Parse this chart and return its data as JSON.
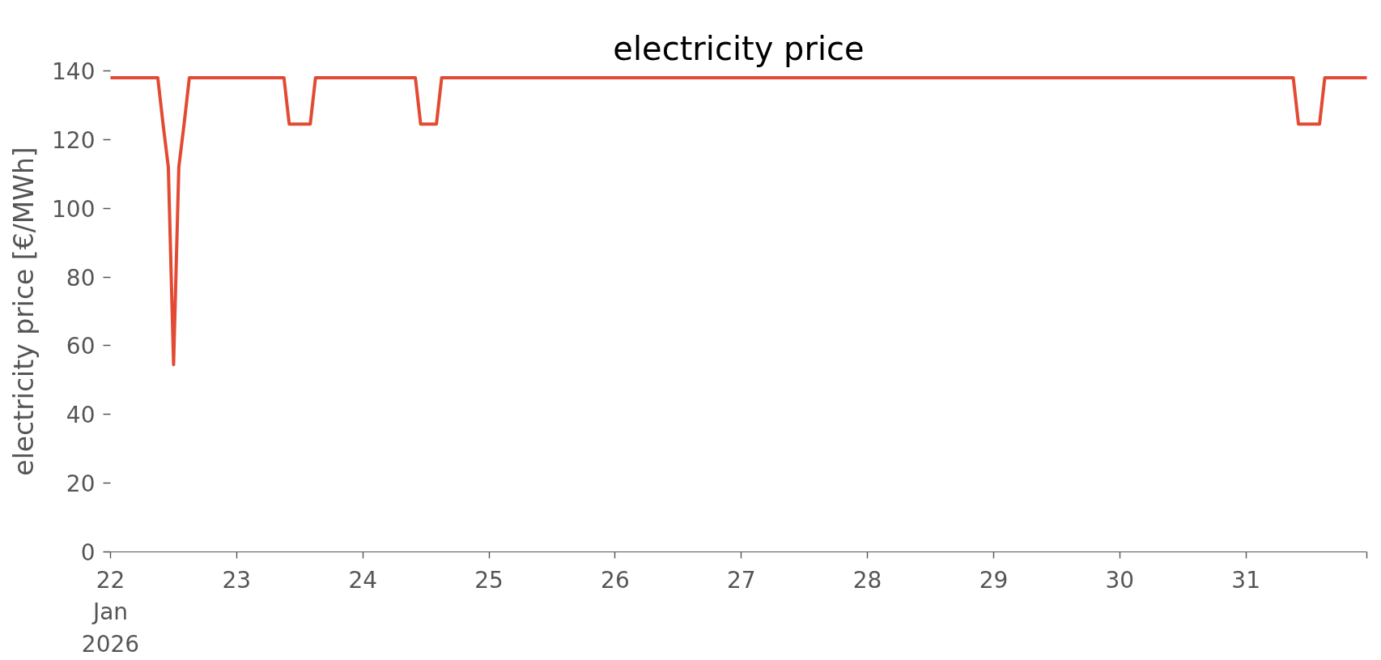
{
  "chart_data": {
    "type": "line",
    "title": "electricity price",
    "ylabel": "electricity price [€/MWh]",
    "x": [
      "2026-01-22T00:00",
      "2026-01-22T09:00",
      "2026-01-22T10:00",
      "2026-01-22T11:00",
      "2026-01-22T12:00",
      "2026-01-22T13:00",
      "2026-01-22T14:00",
      "2026-01-22T15:00",
      "2026-01-23T09:00",
      "2026-01-23T10:00",
      "2026-01-23T14:00",
      "2026-01-23T15:00",
      "2026-01-24T10:00",
      "2026-01-24T11:00",
      "2026-01-24T14:00",
      "2026-01-24T15:00",
      "2026-01-31T09:00",
      "2026-01-31T10:00",
      "2026-01-31T14:00",
      "2026-01-31T15:00",
      "2026-01-31T23:00"
    ],
    "values": [
      138,
      138,
      124.5,
      112,
      54.5,
      112,
      124.5,
      138,
      138,
      124.5,
      124.5,
      138,
      138,
      124.5,
      124.5,
      138,
      138,
      124.5,
      124.5,
      138,
      138
    ],
    "color": "#e24a33",
    "xlim": [
      "2026-01-22T00:00",
      "2026-01-31T23:00"
    ],
    "xticks": [
      {
        "value": "2026-01-22",
        "label": "22\nJan\n2026"
      },
      {
        "value": "2026-01-23",
        "label": "23"
      },
      {
        "value": "2026-01-24",
        "label": "24"
      },
      {
        "value": "2026-01-25",
        "label": "25"
      },
      {
        "value": "2026-01-26",
        "label": "26"
      },
      {
        "value": "2026-01-27",
        "label": "27"
      },
      {
        "value": "2026-01-28",
        "label": "28"
      },
      {
        "value": "2026-01-29",
        "label": "29"
      },
      {
        "value": "2026-01-30",
        "label": "30"
      },
      {
        "value": "2026-01-31",
        "label": "31"
      },
      {
        "value": "2026-01-31T23:00",
        "label": null
      }
    ],
    "ylim": [
      0,
      140
    ],
    "yticks": [
      0,
      20,
      40,
      60,
      80,
      100,
      120,
      140
    ],
    "grid": false
  }
}
